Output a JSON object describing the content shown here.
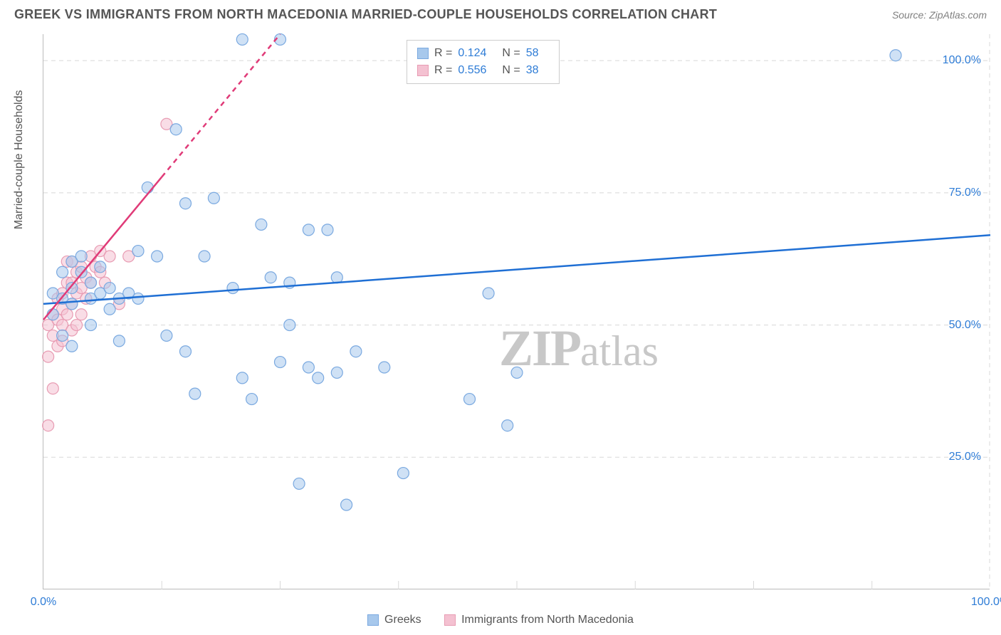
{
  "header": {
    "title": "GREEK VS IMMIGRANTS FROM NORTH MACEDONIA MARRIED-COUPLE HOUSEHOLDS CORRELATION CHART",
    "source": "Source: ZipAtlas.com"
  },
  "yaxis": {
    "title": "Married-couple Households"
  },
  "chart": {
    "type": "scatter",
    "background_color": "#ffffff",
    "grid_color": "#d8d8d8",
    "axis_color": "#bbbbbb",
    "tick_label_color": "#2e7cd6",
    "text_color": "#555555",
    "xlim": [
      0,
      100
    ],
    "ylim": [
      0,
      105
    ],
    "yticks": [
      {
        "v": 25,
        "label": "25.0%"
      },
      {
        "v": 50,
        "label": "50.0%"
      },
      {
        "v": 75,
        "label": "75.0%"
      },
      {
        "v": 100,
        "label": "100.0%"
      }
    ],
    "xticks": [
      {
        "v": 0,
        "label": "0.0%"
      },
      {
        "v": 100,
        "label": "100.0%"
      }
    ],
    "xgrid_minor": [
      12.5,
      25,
      37.5,
      50,
      62.5,
      75,
      87.5
    ],
    "marker_radius": 8,
    "marker_opacity": 0.55,
    "trendline_width": 2.5,
    "series": [
      {
        "name": "Greeks",
        "color": "#7aa9e0",
        "fill": "#a7c8ec",
        "line_color": "#1f6fd4",
        "r_label": "R =",
        "r_value": "0.124",
        "n_label": "N =",
        "n_value": "58",
        "trend": {
          "x1": 0,
          "y1": 54,
          "x2": 100,
          "y2": 67
        },
        "points": [
          [
            1,
            52
          ],
          [
            1,
            56
          ],
          [
            2,
            48
          ],
          [
            2,
            60
          ],
          [
            2,
            55
          ],
          [
            3,
            57
          ],
          [
            3,
            62
          ],
          [
            3,
            54
          ],
          [
            3,
            46
          ],
          [
            4,
            60
          ],
          [
            4,
            63
          ],
          [
            5,
            55
          ],
          [
            5,
            58
          ],
          [
            5,
            50
          ],
          [
            6,
            61
          ],
          [
            6,
            56
          ],
          [
            7,
            57
          ],
          [
            7,
            53
          ],
          [
            8,
            55
          ],
          [
            8,
            47
          ],
          [
            9,
            56
          ],
          [
            10,
            64
          ],
          [
            10,
            55
          ],
          [
            11,
            76
          ],
          [
            12,
            63
          ],
          [
            13,
            48
          ],
          [
            14,
            87
          ],
          [
            15,
            45
          ],
          [
            15,
            73
          ],
          [
            16,
            37
          ],
          [
            17,
            63
          ],
          [
            18,
            74
          ],
          [
            20,
            57
          ],
          [
            21,
            104
          ],
          [
            21,
            40
          ],
          [
            22,
            36
          ],
          [
            23,
            69
          ],
          [
            24,
            59
          ],
          [
            25,
            104
          ],
          [
            25,
            43
          ],
          [
            26,
            58
          ],
          [
            26,
            50
          ],
          [
            27,
            20
          ],
          [
            28,
            42
          ],
          [
            28,
            68
          ],
          [
            29,
            40
          ],
          [
            30,
            68
          ],
          [
            31,
            41
          ],
          [
            31,
            59
          ],
          [
            32,
            16
          ],
          [
            33,
            45
          ],
          [
            36,
            42
          ],
          [
            38,
            22
          ],
          [
            45,
            36
          ],
          [
            47,
            56
          ],
          [
            49,
            31
          ],
          [
            50,
            41
          ],
          [
            90,
            101
          ]
        ]
      },
      {
        "name": "Immigrants from North Macedonia",
        "color": "#e89cb3",
        "fill": "#f4c1d1",
        "line_color": "#e03b78",
        "r_label": "R =",
        "r_value": "0.556",
        "n_label": "N =",
        "n_value": "38",
        "trend": {
          "x1": 0,
          "y1": 51,
          "x2": 25,
          "y2": 105
        },
        "dashed_above": 78,
        "points": [
          [
            0.5,
            31
          ],
          [
            0.5,
            44
          ],
          [
            0.5,
            50
          ],
          [
            1,
            38
          ],
          [
            1,
            48
          ],
          [
            1,
            52
          ],
          [
            1.5,
            46
          ],
          [
            1.5,
            51
          ],
          [
            1.5,
            55
          ],
          [
            2,
            47
          ],
          [
            2,
            50
          ],
          [
            2,
            53
          ],
          [
            2,
            56
          ],
          [
            2.5,
            52
          ],
          [
            2.5,
            58
          ],
          [
            2.5,
            62
          ],
          [
            3,
            49
          ],
          [
            3,
            54
          ],
          [
            3,
            58
          ],
          [
            3,
            62
          ],
          [
            3.5,
            50
          ],
          [
            3.5,
            56
          ],
          [
            3.5,
            60
          ],
          [
            4,
            52
          ],
          [
            4,
            57
          ],
          [
            4,
            61
          ],
          [
            4.5,
            55
          ],
          [
            4.5,
            59
          ],
          [
            5,
            58
          ],
          [
            5,
            63
          ],
          [
            5.5,
            61
          ],
          [
            6,
            60
          ],
          [
            6,
            64
          ],
          [
            6.5,
            58
          ],
          [
            7,
            63
          ],
          [
            8,
            54
          ],
          [
            9,
            63
          ],
          [
            13,
            88
          ]
        ]
      }
    ]
  },
  "legend_top": {
    "labels": {
      "r": "R =",
      "n": "N ="
    }
  },
  "legend_bottom": {
    "items": [
      {
        "label": "Greeks",
        "fill": "#a7c8ec",
        "border": "#7aa9e0"
      },
      {
        "label": "Immigrants from North Macedonia",
        "fill": "#f4c1d1",
        "border": "#e89cb3"
      }
    ]
  },
  "watermark": {
    "zip": "ZIP",
    "rest": "atlas"
  }
}
